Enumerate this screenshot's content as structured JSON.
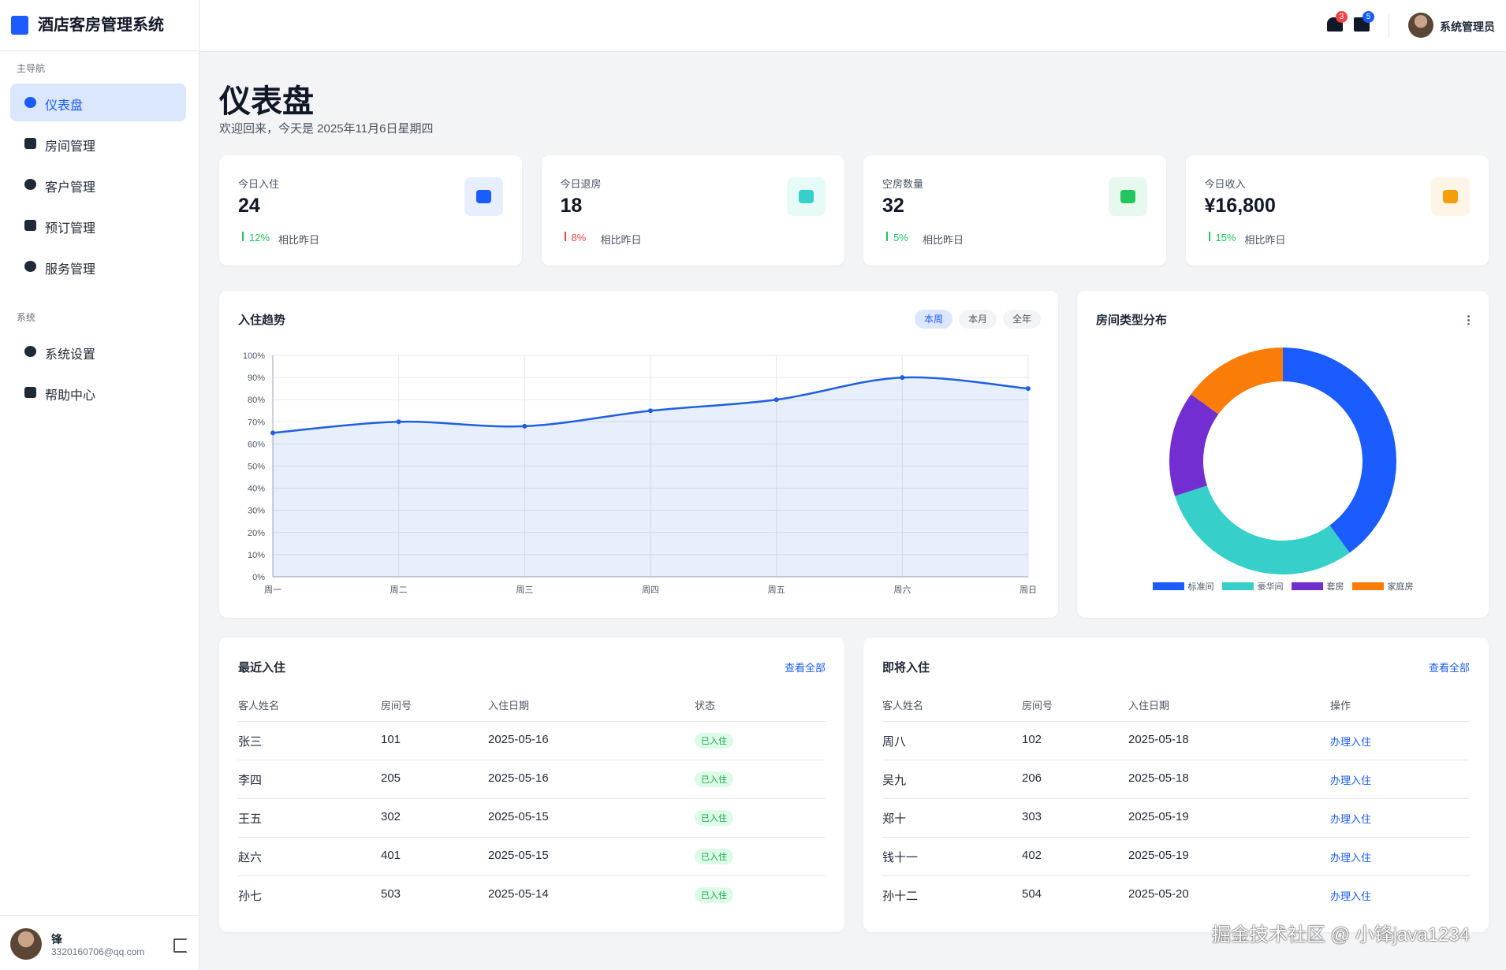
{
  "brand": "酒店客房管理系统",
  "header": {
    "notifications": "3",
    "messages": "5",
    "user": "系统管理员"
  },
  "sidebar": {
    "sections": [
      {
        "title": "主导航",
        "items": [
          "仪表盘",
          "房间管理",
          "客户管理",
          "预订管理",
          "服务管理"
        ]
      },
      {
        "title": "系统",
        "items": [
          "系统设置",
          "帮助中心"
        ]
      }
    ],
    "profile": {
      "name": "锋",
      "email": "3320160706@qq.com"
    }
  },
  "page": {
    "title": "仪表盘",
    "subtitle": "欢迎回来，今天是 2025年11月6日星期四"
  },
  "stats": [
    {
      "label": "今日入住",
      "value": "24",
      "change": "12%",
      "direction": "up",
      "note": "相比昨日"
    },
    {
      "label": "今日退房",
      "value": "18",
      "change": "8%",
      "direction": "down",
      "note": "相比昨日"
    },
    {
      "label": "空房数量",
      "value": "32",
      "change": "5%",
      "direction": "up",
      "note": "相比昨日"
    },
    {
      "label": "今日收入",
      "value": "¥16,800",
      "change": "15%",
      "direction": "up",
      "note": "相比昨日"
    }
  ],
  "chart_data": [
    {
      "type": "line",
      "title": "入住趋势",
      "periods": [
        "本周",
        "本月",
        "全年"
      ],
      "categories": [
        "周一",
        "周二",
        "周三",
        "周四",
        "周五",
        "周六",
        "周日"
      ],
      "values": [
        65,
        70,
        68,
        75,
        80,
        90,
        85
      ],
      "color": "#1f5fe0",
      "ylim": [
        0,
        100
      ],
      "yticks": [
        {
          "value": 0,
          "label": "0%"
        },
        {
          "value": 10,
          "label": "10%"
        },
        {
          "value": 20,
          "label": "20%"
        },
        {
          "value": 30,
          "label": "30%"
        },
        {
          "value": 40,
          "label": "40%"
        },
        {
          "value": 50,
          "label": "50%"
        },
        {
          "value": 60,
          "label": "60%"
        },
        {
          "value": 70,
          "label": "70%"
        },
        {
          "value": 80,
          "label": "80%"
        },
        {
          "value": 90,
          "label": "90%"
        },
        {
          "value": 100,
          "label": "100%"
        }
      ],
      "grid": true
    },
    {
      "type": "donut",
      "title": "房间类型分布",
      "series": [
        {
          "name": "标准间",
          "color": "#1a5cff",
          "values": [
            40
          ]
        },
        {
          "name": "豪华间",
          "color": "#36cfc9",
          "values": [
            30
          ]
        },
        {
          "name": "套房",
          "color": "#722ed1",
          "values": [
            15
          ]
        },
        {
          "name": "家庭房",
          "color": "#fa7d09",
          "values": [
            15
          ]
        }
      ]
    }
  ],
  "recent": {
    "title": "最近入住",
    "link": "查看全部",
    "columns": [
      "客人姓名",
      "房间号",
      "入住日期",
      "状态"
    ],
    "rows": [
      [
        "张三",
        "101",
        "2025-05-16",
        "已入住"
      ],
      [
        "李四",
        "205",
        "2025-05-16",
        "已入住"
      ],
      [
        "王五",
        "302",
        "2025-05-15",
        "已入住"
      ],
      [
        "赵六",
        "401",
        "2025-05-15",
        "已入住"
      ],
      [
        "孙七",
        "503",
        "2025-05-14",
        "已入住"
      ]
    ]
  },
  "upcoming": {
    "title": "即将入住",
    "link": "查看全部",
    "columns": [
      "客人姓名",
      "房间号",
      "入住日期",
      "操作"
    ],
    "rows": [
      [
        "周八",
        "102",
        "2025-05-18",
        "办理入住"
      ],
      [
        "吴九",
        "206",
        "2025-05-18",
        "办理入住"
      ],
      [
        "郑十",
        "303",
        "2025-05-19",
        "办理入住"
      ],
      [
        "钱十一",
        "402",
        "2025-05-19",
        "办理入住"
      ],
      [
        "孙十二",
        "504",
        "2025-05-20",
        "办理入住"
      ]
    ]
  },
  "watermark": "掘金技术社区 @ 小锋java1234"
}
